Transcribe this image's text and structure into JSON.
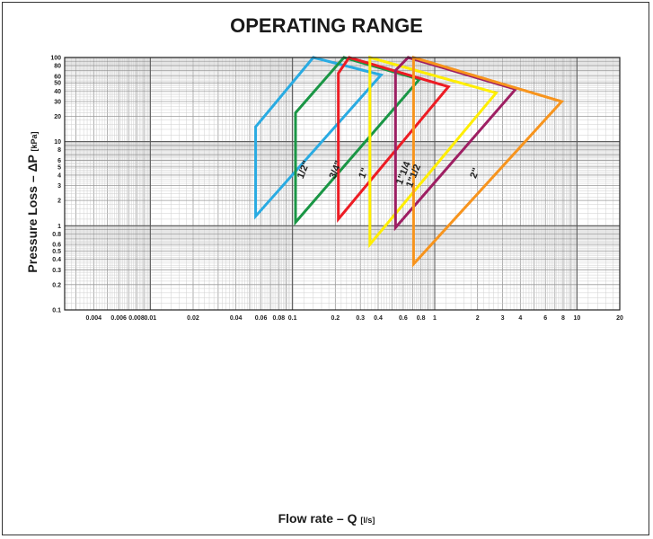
{
  "chart_data": {
    "type": "line",
    "title": "OPERATING RANGE",
    "xlabel": "Flow rate – Q",
    "xlabel_unit": "[l/s]",
    "ylabel": "Pressure Loss – ΔP",
    "ylabel_unit": "[kPa]",
    "x_scale": "log",
    "y_scale": "log",
    "xlim": [
      0.0025,
      20
    ],
    "ylim": [
      0.1,
      100
    ],
    "grid": true,
    "x_ticks": [
      {
        "value": 0.004,
        "label": "0.004"
      },
      {
        "value": 0.006,
        "label": "0.006"
      },
      {
        "value": 0.008,
        "label": "0.008"
      },
      {
        "value": 0.01,
        "label": "0.01"
      },
      {
        "value": 0.02,
        "label": "0.02"
      },
      {
        "value": 0.04,
        "label": "0.04"
      },
      {
        "value": 0.06,
        "label": "0.06"
      },
      {
        "value": 0.08,
        "label": "0.08"
      },
      {
        "value": 0.1,
        "label": "0.1"
      },
      {
        "value": 0.2,
        "label": "0.2"
      },
      {
        "value": 0.3,
        "label": "0.3"
      },
      {
        "value": 0.4,
        "label": "0.4"
      },
      {
        "value": 0.6,
        "label": "0.6"
      },
      {
        "value": 0.8,
        "label": "0.8"
      },
      {
        "value": 1,
        "label": "1"
      },
      {
        "value": 2,
        "label": "2"
      },
      {
        "value": 3,
        "label": "3"
      },
      {
        "value": 4,
        "label": "4"
      },
      {
        "value": 6,
        "label": "6"
      },
      {
        "value": 8,
        "label": "8"
      },
      {
        "value": 10,
        "label": "10"
      },
      {
        "value": 20,
        "label": "20"
      }
    ],
    "y_ticks": [
      {
        "value": 0.1,
        "label": "0.1"
      },
      {
        "value": 0.2,
        "label": "0.2"
      },
      {
        "value": 0.3,
        "label": "0.3"
      },
      {
        "value": 0.4,
        "label": "0.4"
      },
      {
        "value": 0.5,
        "label": "0.5"
      },
      {
        "value": 0.6,
        "label": "0.6"
      },
      {
        "value": 0.8,
        "label": "0.8"
      },
      {
        "value": 1,
        "label": "1"
      },
      {
        "value": 2,
        "label": "2"
      },
      {
        "value": 3,
        "label": "3"
      },
      {
        "value": 4,
        "label": "4"
      },
      {
        "value": 5,
        "label": "5"
      },
      {
        "value": 6,
        "label": "6"
      },
      {
        "value": 8,
        "label": "8"
      },
      {
        "value": 10,
        "label": "10"
      },
      {
        "value": 20,
        "label": "20"
      },
      {
        "value": 30,
        "label": "30"
      },
      {
        "value": 40,
        "label": "40"
      },
      {
        "value": 50,
        "label": "50"
      },
      {
        "value": 60,
        "label": "60"
      },
      {
        "value": 80,
        "label": "80"
      },
      {
        "value": 100,
        "label": "100"
      }
    ],
    "series": [
      {
        "name": "1/2\"",
        "color": "#29abe2",
        "points": [
          [
            0.055,
            1.3
          ],
          [
            0.055,
            15
          ],
          [
            0.14,
            100
          ],
          [
            0.42,
            62
          ]
        ]
      },
      {
        "name": "3/4\"",
        "color": "#1a9645",
        "points": [
          [
            0.105,
            1.1
          ],
          [
            0.105,
            22
          ],
          [
            0.23,
            100
          ],
          [
            0.78,
            55
          ]
        ]
      },
      {
        "name": "1\"",
        "color": "#ed1c24",
        "points": [
          [
            0.21,
            1.2
          ],
          [
            0.21,
            65
          ],
          [
            0.25,
            100
          ],
          [
            1.25,
            45
          ]
        ]
      },
      {
        "name": "1\"1/4",
        "color": "#ffee00",
        "points": [
          [
            0.35,
            0.6
          ],
          [
            0.35,
            100
          ],
          [
            2.7,
            38
          ]
        ]
      },
      {
        "name": "1\"1/2",
        "color": "#9e1f63",
        "points": [
          [
            0.53,
            0.95
          ],
          [
            0.53,
            70
          ],
          [
            0.65,
            100
          ],
          [
            3.7,
            42
          ]
        ]
      },
      {
        "name": "2\"",
        "color": "#f7941d",
        "points": [
          [
            0.71,
            0.35
          ],
          [
            0.71,
            100
          ],
          [
            7.8,
            30
          ]
        ]
      }
    ],
    "size_labels": [
      {
        "series": 0,
        "text": "1/2\"",
        "x": 0.125,
        "y": 4.5
      },
      {
        "series": 1,
        "text": "3/4\"",
        "x": 0.21,
        "y": 4.5
      },
      {
        "series": 2,
        "text": "1\"",
        "x": 0.33,
        "y": 4.1
      },
      {
        "series": 3,
        "text": "1\"1/4",
        "x": 0.63,
        "y": 4.1
      },
      {
        "series": 4,
        "text": "1\"1/2",
        "x": 0.74,
        "y": 3.8
      },
      {
        "series": 5,
        "text": "2\"",
        "x": 2.0,
        "y": 4.1
      }
    ]
  }
}
